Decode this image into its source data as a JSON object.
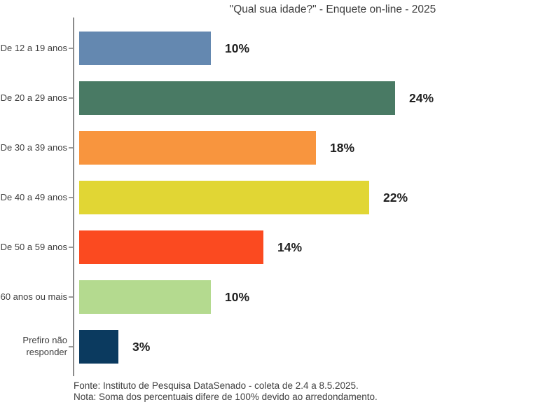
{
  "title": "\"Qual sua idade?\" - Enquete on-line - 2025",
  "chart_data": {
    "type": "bar",
    "orientation": "horizontal",
    "title": "\"Qual sua idade?\" - Enquete on-line - 2025",
    "categories": [
      "De 12 a 19 anos",
      "De 20 a 29 anos",
      "De 30 a 39 anos",
      "De 40 a 49 anos",
      "De 50 a 59 anos",
      "60 anos ou mais",
      "Prefiro não responder"
    ],
    "values": [
      10,
      24,
      18,
      22,
      14,
      10,
      3
    ],
    "value_labels": [
      "10%",
      "24%",
      "18%",
      "22%",
      "14%",
      "10%",
      "3%"
    ],
    "bar_colors": [
      "#6488b0",
      "#497a64",
      "#f8953e",
      "#e1d634",
      "#fb4a20",
      "#b4da8f",
      "#0b3a5f"
    ],
    "unit": "%",
    "xlim": [
      0,
      34.8
    ],
    "grid": false,
    "legend": null
  },
  "footer": {
    "fonte": "Fonte: Instituto de Pesquisa DataSenado - coleta de 2.4 a 8.5.2025.",
    "nota": "Nota: Soma dos percentuais difere de 100% devido ao arredondamento."
  },
  "colors": {
    "axis": "#8a8a8a",
    "tick": "#9a9a9a",
    "text": "#3f3f3f",
    "value_label": "#1f1f1f",
    "background": "#ffffff"
  }
}
